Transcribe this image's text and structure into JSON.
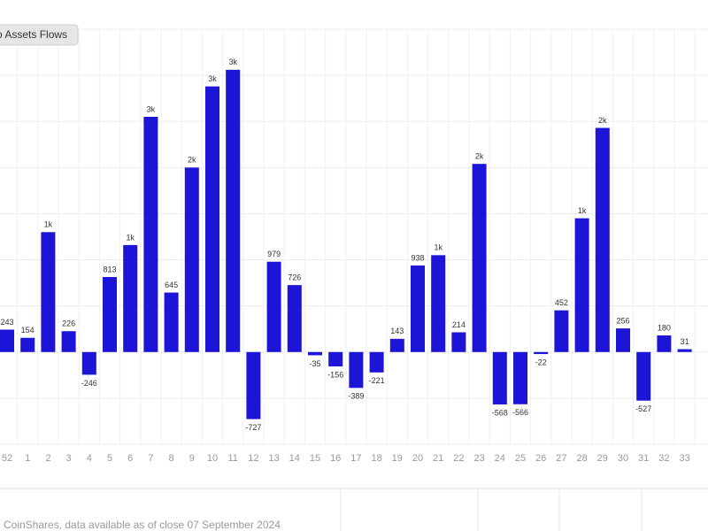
{
  "chart_data": {
    "type": "bar",
    "title": "o Assets Flows",
    "source": "CoinShares, data available as of close 07 September 2024",
    "categories": [
      "52",
      "1",
      "2",
      "3",
      "4",
      "5",
      "6",
      "7",
      "8",
      "9",
      "10",
      "11",
      "12",
      "13",
      "14",
      "15",
      "16",
      "17",
      "18",
      "19",
      "20",
      "21",
      "22",
      "23",
      "24",
      "25",
      "26",
      "27",
      "28",
      "29",
      "30",
      "31",
      "32",
      "33"
    ],
    "values": [
      243,
      154,
      1300,
      226,
      -246,
      813,
      1160,
      2550,
      645,
      2000,
      2880,
      3060,
      -727,
      979,
      726,
      -35,
      -156,
      -389,
      -221,
      143,
      938,
      1050,
      214,
      2040,
      -568,
      -566,
      -22,
      452,
      1450,
      2430,
      256,
      -527,
      180,
      31
    ],
    "value_labels": [
      "243",
      "154",
      "1k",
      "226",
      "-246",
      "813",
      "1k",
      "3k",
      "645",
      "2k",
      "3k",
      "3k",
      "-727",
      "979",
      "726",
      "-35",
      "-156",
      "-389",
      "-221",
      "143",
      "938",
      "1k",
      "214",
      "2k",
      "-568",
      "-566",
      "-22",
      "452",
      "1k",
      "2k",
      "256",
      "-527",
      "180",
      "31"
    ],
    "color": "#1c14d6",
    "ylim": [
      -1000,
      3500
    ],
    "yticks": [
      -1000,
      -500,
      0,
      500,
      1000,
      1500,
      2000,
      2500,
      3000,
      3500
    ],
    "grid": true
  }
}
